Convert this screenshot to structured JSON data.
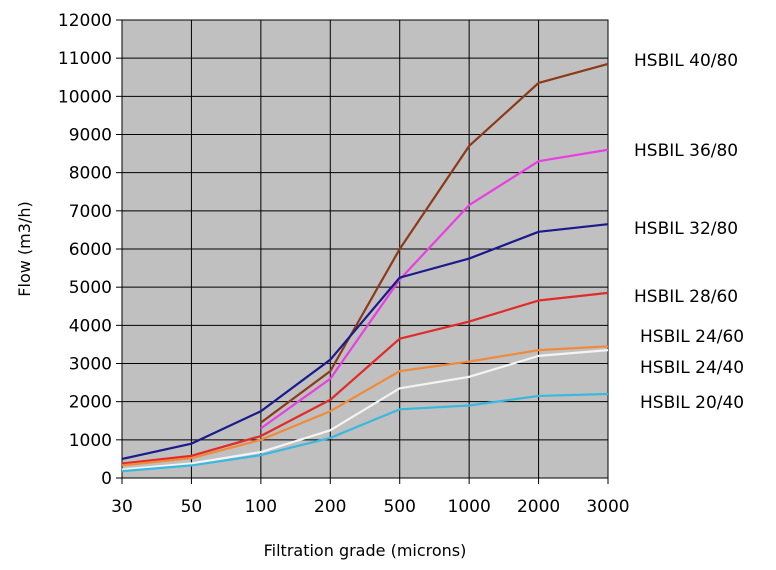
{
  "chart_data": {
    "type": "line",
    "title": "",
    "xlabel": "Filtration grade (microns)",
    "ylabel": "Flow (m3/h)",
    "categories": [
      "30",
      "50",
      "100",
      "200",
      "500",
      "1000",
      "2000",
      "3000"
    ],
    "ylim": [
      0,
      12000
    ],
    "yticks": [
      "0",
      "1000",
      "2000",
      "3000",
      "4000",
      "5000",
      "6000",
      "7000",
      "8000",
      "9000",
      "10000",
      "11000",
      "12000"
    ],
    "grid": true,
    "legend": "right",
    "series": [
      {
        "name": "HSBIL 40/80",
        "color": "#8b3a1a",
        "start": 2,
        "values": [
          null,
          null,
          1450,
          2800,
          6000,
          8700,
          10350,
          10850
        ]
      },
      {
        "name": "HSBIL 36/80",
        "color": "#e83fe0",
        "start": 2,
        "values": [
          null,
          null,
          1300,
          2600,
          5200,
          7150,
          8300,
          8600
        ]
      },
      {
        "name": "HSBIL 32/80",
        "color": "#1a1a8c",
        "start": 0,
        "values": [
          500,
          900,
          1750,
          3100,
          5250,
          5750,
          6450,
          6650
        ]
      },
      {
        "name": "HSBIL 28/60",
        "color": "#e02b2b",
        "start": 0,
        "values": [
          380,
          580,
          1100,
          2050,
          3650,
          4100,
          4650,
          4850
        ]
      },
      {
        "name": "HSBIL 24/60",
        "color": "#f08a3a",
        "start": 0,
        "values": [
          330,
          520,
          1000,
          1750,
          2800,
          3050,
          3350,
          3450
        ]
      },
      {
        "name": "HSBIL 24/40",
        "color": "#f4f4f4",
        "start": 0,
        "values": [
          220,
          380,
          680,
          1250,
          2350,
          2650,
          3200,
          3350
        ]
      },
      {
        "name": "HSBIL 20/40",
        "color": "#3ab8e0",
        "start": 0,
        "values": [
          180,
          330,
          600,
          1050,
          1800,
          1900,
          2150,
          2200
        ]
      }
    ],
    "legend_labels": [
      {
        "name": "HSBIL 40/80"
      },
      {
        "name": "HSBIL 36/80"
      },
      {
        "name": "HSBIL 32/80"
      },
      {
        "name": "HSBIL 28/60"
      },
      {
        "name": "HSBIL 24/60"
      },
      {
        "name": "HSBIL 24/40"
      },
      {
        "name": "HSBIL 20/40"
      }
    ]
  }
}
